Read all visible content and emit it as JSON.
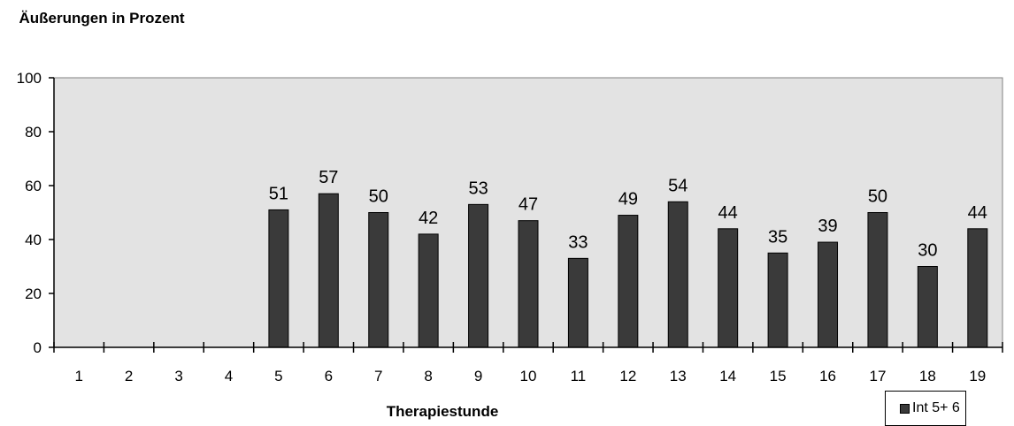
{
  "chart_data": {
    "type": "bar",
    "ylabel": "Äußerungen in Prozent",
    "xlabel": "Therapiestunde",
    "categories": [
      "1",
      "2",
      "3",
      "4",
      "5",
      "6",
      "7",
      "8",
      "9",
      "10",
      "11",
      "12",
      "13",
      "14",
      "15",
      "16",
      "17",
      "18",
      "19"
    ],
    "series": [
      {
        "name": "Int 5+ 6",
        "values": [
          null,
          null,
          null,
          null,
          51,
          57,
          50,
          42,
          53,
          47,
          33,
          49,
          54,
          44,
          35,
          39,
          50,
          30,
          44
        ]
      }
    ],
    "data_labels": [
      "",
      "",
      "",
      "",
      "51",
      "57",
      "50",
      "42",
      "53",
      "47",
      "33",
      "49",
      "54",
      "44",
      "35",
      "39",
      "50",
      "30",
      "44"
    ],
    "ylim": [
      0,
      100
    ],
    "yticks": [
      "0",
      "20",
      "40",
      "60",
      "80",
      "100"
    ],
    "grid": false,
    "legend": "bottom-right",
    "colors": {
      "plot_background": "#e3e3e3",
      "bar_fill": "#3a3a3a",
      "bar_stroke": "#000000"
    }
  }
}
